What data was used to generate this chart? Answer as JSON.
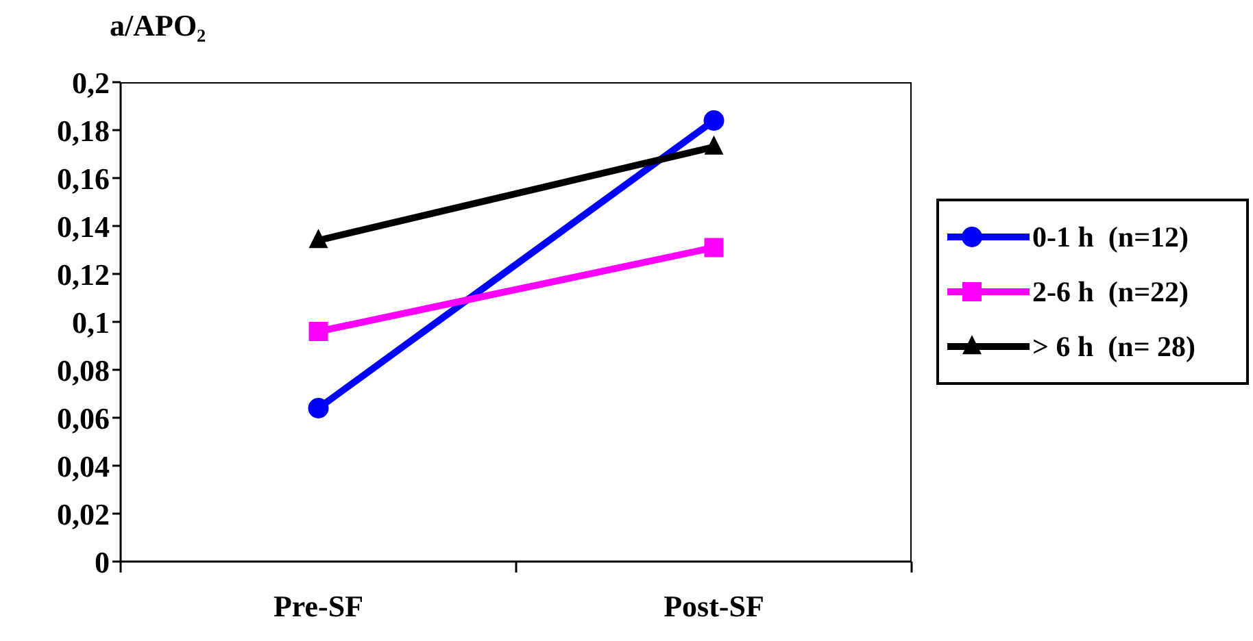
{
  "chart_data": {
    "type": "line",
    "ylabel": "a/APO₂",
    "categories": [
      "Pre-SF",
      "Post-SF"
    ],
    "series": [
      {
        "name": "0-1 h  (n=12)",
        "color": "#0000ff",
        "marker": "circle",
        "values": [
          0.064,
          0.184
        ]
      },
      {
        "name": "2-6 h  (n=22)",
        "color": "#ff00ff",
        "marker": "square",
        "values": [
          0.096,
          0.131
        ]
      },
      {
        "name": "> 6 h  (n= 28)",
        "color": "#000000",
        "marker": "triangle",
        "values": [
          0.134,
          0.173
        ]
      }
    ],
    "ylim": [
      0,
      0.2
    ],
    "yticks": [
      0,
      {
        "value": 0.02,
        "label": "0,02"
      },
      {
        "value": 0.04,
        "label": "0,04"
      },
      {
        "value": 0.06,
        "label": "0,06"
      },
      {
        "value": 0.08,
        "label": "0,08"
      },
      {
        "value": 0.1,
        "label": "0,1"
      },
      {
        "value": 0.12,
        "label": "0,12"
      },
      {
        "value": 0.14,
        "label": "0,14"
      },
      {
        "value": 0.16,
        "label": "0,16"
      },
      {
        "value": 0.18,
        "label": "0,18"
      },
      {
        "value": 0.2,
        "label": "0,2"
      }
    ],
    "grid": false,
    "legend": "right"
  }
}
